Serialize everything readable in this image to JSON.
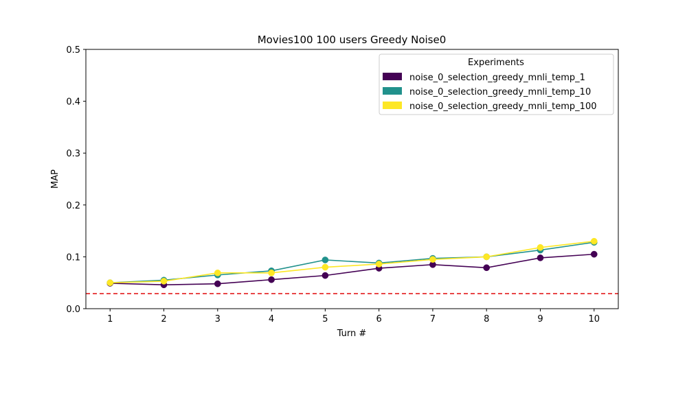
{
  "chart_data": {
    "type": "line",
    "title": "Movies100 100 users Greedy Noise0",
    "xlabel": "Turn #",
    "ylabel": "MAP",
    "x": [
      1,
      2,
      3,
      4,
      5,
      6,
      7,
      8,
      9,
      10
    ],
    "xlim": [
      0.55,
      10.45
    ],
    "ylim": [
      0.0,
      0.5
    ],
    "yticks": [
      0.0,
      0.1,
      0.2,
      0.3,
      0.4,
      0.5
    ],
    "ytick_labels": [
      "0.0",
      "0.1",
      "0.2",
      "0.3",
      "0.4",
      "0.5"
    ],
    "xtick_labels": [
      "1",
      "2",
      "3",
      "4",
      "5",
      "6",
      "7",
      "8",
      "9",
      "10"
    ],
    "grid": false,
    "legend": {
      "title": "Experiments",
      "placement": "top-right"
    },
    "series": [
      {
        "name": "noise_0_selection_greedy_mnli_temp_1",
        "color": "#440154",
        "values": [
          0.049,
          0.046,
          0.048,
          0.056,
          0.064,
          0.078,
          0.085,
          0.079,
          0.098,
          0.105
        ]
      },
      {
        "name": "noise_0_selection_greedy_mnli_temp_10",
        "color": "#21918c",
        "values": [
          0.05,
          0.055,
          0.065,
          0.073,
          0.094,
          0.088,
          0.097,
          0.1,
          0.113,
          0.128
        ]
      },
      {
        "name": "noise_0_selection_greedy_mnli_temp_100",
        "color": "#fde725",
        "values": [
          0.05,
          0.053,
          0.069,
          0.069,
          0.08,
          0.086,
          0.095,
          0.1,
          0.118,
          0.13
        ]
      }
    ],
    "baseline": {
      "value": 0.029,
      "color": "#e31a1c",
      "style": "dashed"
    }
  }
}
